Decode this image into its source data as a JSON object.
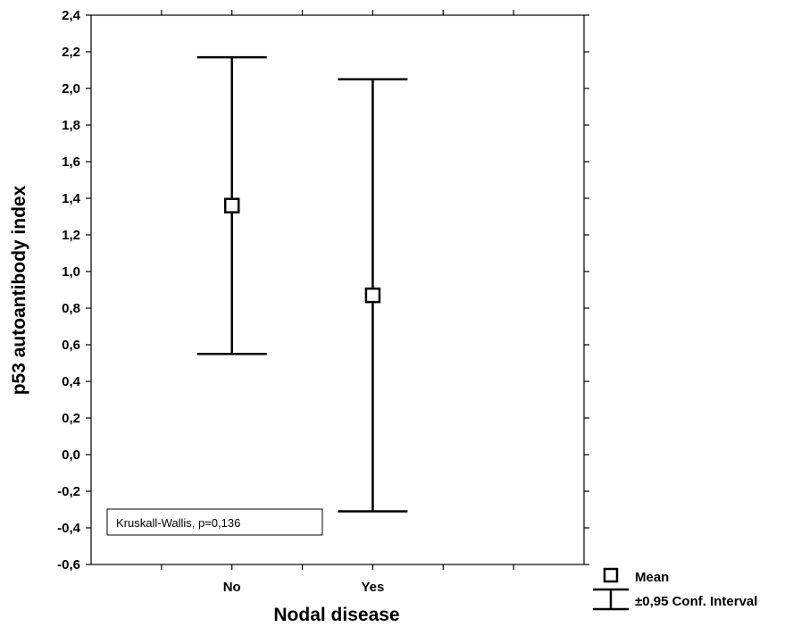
{
  "chart_data": {
    "type": "errorbar",
    "title": "",
    "xlabel": "Nodal disease",
    "ylabel": "p53 autoantibody index",
    "categories": [
      "No",
      "Yes"
    ],
    "x_positions": [
      2,
      4
    ],
    "xlim": [
      0,
      7
    ],
    "ylim": [
      -0.6,
      2.4
    ],
    "y_ticks": [
      -0.6,
      -0.4,
      -0.2,
      0.0,
      0.2,
      0.4,
      0.6,
      0.8,
      1.0,
      1.2,
      1.4,
      1.6,
      1.8,
      2.0,
      2.2,
      2.4
    ],
    "y_tick_labels": [
      "-0,6",
      "-0,4",
      "-0,2",
      "0,0",
      "0,2",
      "0,4",
      "0,6",
      "0,8",
      "1,0",
      "1,2",
      "1,4",
      "1,6",
      "1,8",
      "2,0",
      "2,2",
      "2,4"
    ],
    "series": [
      {
        "mean": [
          1.36,
          0.87
        ],
        "ci_lower": [
          0.55,
          -0.31
        ],
        "ci_upper": [
          2.17,
          2.05
        ]
      }
    ],
    "annotation": "Kruskall-Wallis, p=0,136",
    "legend": {
      "position": "bottom-right",
      "items": [
        {
          "label": "Mean",
          "symbol": "square-icon"
        },
        {
          "label": "±0,95 Conf. Interval",
          "symbol": "error-bar-icon"
        }
      ]
    },
    "grid": false
  }
}
